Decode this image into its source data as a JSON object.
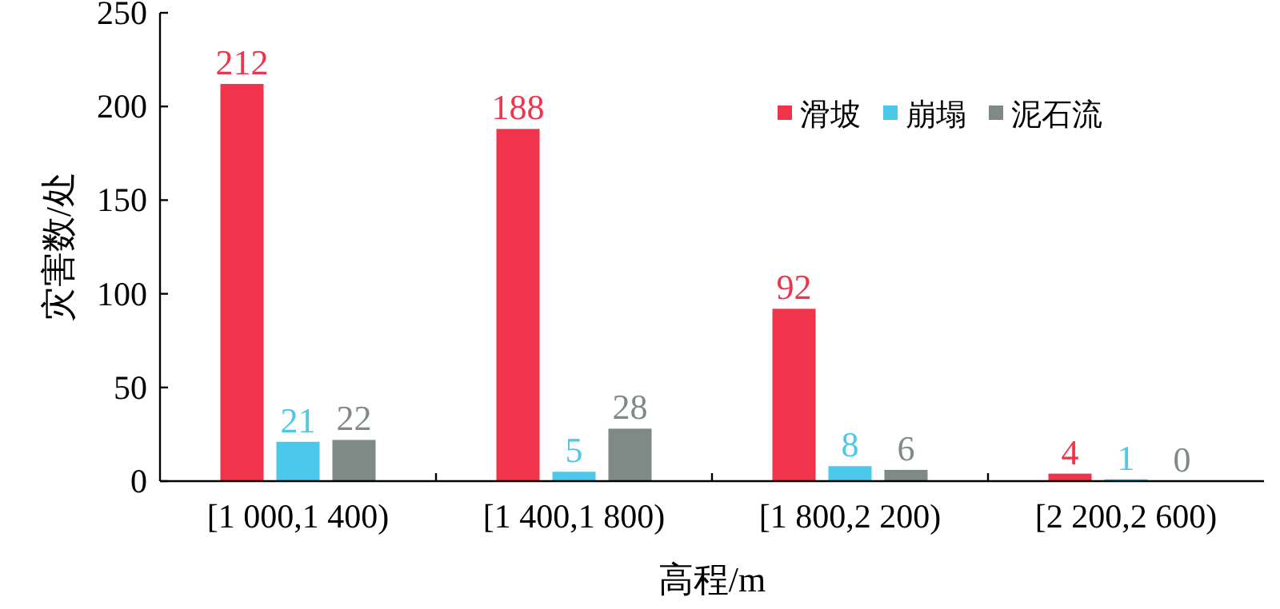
{
  "chart_data": {
    "type": "bar",
    "xlabel": "高程/m",
    "ylabel": "灾害数/处",
    "categories": [
      "[1 000,1 400)",
      "[1 400,1 800)",
      "[1 800,2 200)",
      "[2 200,2 600)"
    ],
    "series": [
      {
        "name": "滑坡",
        "color": "#f0344c",
        "values": [
          212,
          188,
          92,
          4
        ]
      },
      {
        "name": "崩塌",
        "color": "#4cc8ea",
        "values": [
          21,
          5,
          8,
          1
        ]
      },
      {
        "name": "泥石流",
        "color": "#7f8a87",
        "values": [
          22,
          28,
          6,
          0
        ]
      }
    ],
    "ylim": [
      0,
      250
    ],
    "yticks": [
      0,
      50,
      100,
      150,
      200,
      250
    ],
    "data_labels": true,
    "legend": "top right",
    "grid": false
  }
}
